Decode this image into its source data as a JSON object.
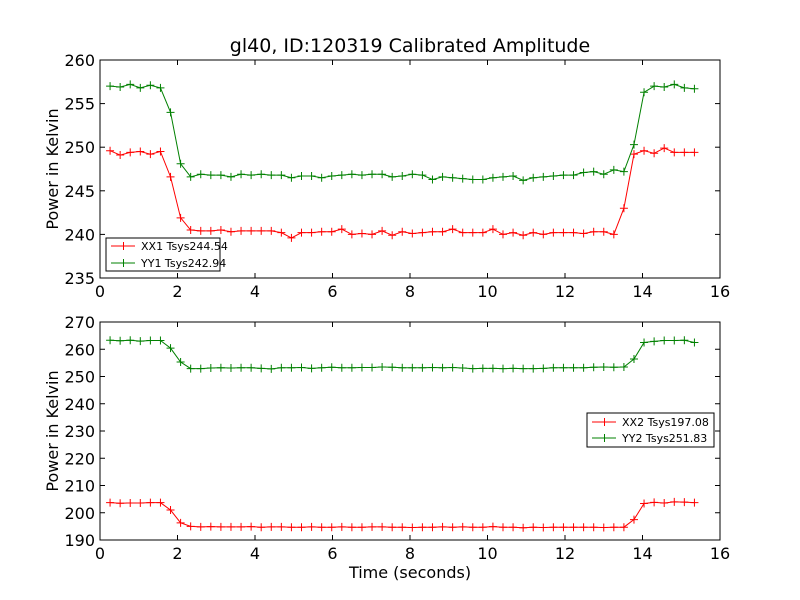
{
  "figure": {
    "title": "gl40, ID:120319 Calibrated Amplitude"
  },
  "chart_data": [
    {
      "type": "line",
      "title": "gl40, ID:120319 Calibrated Amplitude",
      "xlabel": "",
      "ylabel": "Power in Kelvin",
      "xlim": [
        0,
        16
      ],
      "ylim": [
        235,
        260
      ],
      "xticks": [
        0,
        2,
        4,
        6,
        8,
        10,
        12,
        14,
        16
      ],
      "yticks": [
        235,
        240,
        245,
        250,
        255,
        260
      ],
      "grid": false,
      "legend_position": "lower-left",
      "x": [
        0.26,
        0.52,
        0.78,
        1.04,
        1.3,
        1.56,
        1.82,
        2.08,
        2.34,
        2.6,
        2.86,
        3.12,
        3.38,
        3.64,
        3.9,
        4.16,
        4.42,
        4.68,
        4.94,
        5.2,
        5.46,
        5.72,
        5.98,
        6.24,
        6.5,
        6.76,
        7.02,
        7.28,
        7.54,
        7.8,
        8.06,
        8.32,
        8.58,
        8.84,
        9.1,
        9.36,
        9.62,
        9.88,
        10.14,
        10.4,
        10.66,
        10.92,
        11.18,
        11.44,
        11.7,
        11.96,
        12.22,
        12.48,
        12.74,
        13.0,
        13.26,
        13.52,
        13.78,
        14.04,
        14.3,
        14.56,
        14.82,
        15.08,
        15.34
      ],
      "series": [
        {
          "name": "XX1 Tsys244.54",
          "color": "#ff0000",
          "values": [
            249.6,
            249.1,
            249.4,
            249.5,
            249.2,
            249.5,
            246.6,
            241.9,
            240.5,
            240.4,
            240.4,
            240.5,
            240.3,
            240.4,
            240.4,
            240.4,
            240.4,
            240.2,
            239.6,
            240.2,
            240.2,
            240.3,
            240.3,
            240.6,
            240.0,
            240.1,
            240.0,
            240.4,
            239.9,
            240.3,
            240.1,
            240.2,
            240.3,
            240.3,
            240.6,
            240.2,
            240.2,
            240.2,
            240.6,
            240.0,
            240.2,
            239.9,
            240.2,
            240.0,
            240.2,
            240.2,
            240.2,
            240.1,
            240.3,
            240.3,
            240.0,
            243.0,
            249.2,
            249.6,
            249.3,
            249.9,
            249.4,
            249.4,
            249.4
          ]
        },
        {
          "name": "YY1 Tsys242.94",
          "color": "#008000",
          "values": [
            257.0,
            256.9,
            257.2,
            256.8,
            257.1,
            256.8,
            254.0,
            248.1,
            246.6,
            246.9,
            246.8,
            246.8,
            246.6,
            246.9,
            246.8,
            246.9,
            246.8,
            246.8,
            246.5,
            246.7,
            246.7,
            246.5,
            246.7,
            246.8,
            246.9,
            246.8,
            246.9,
            246.9,
            246.6,
            246.7,
            246.9,
            246.8,
            246.3,
            246.6,
            246.5,
            246.4,
            246.3,
            246.3,
            246.5,
            246.6,
            246.7,
            246.2,
            246.5,
            246.6,
            246.7,
            246.8,
            246.8,
            247.1,
            247.2,
            246.9,
            247.4,
            247.2,
            250.3,
            256.3,
            257.0,
            256.9,
            257.2,
            256.8,
            256.7
          ]
        }
      ]
    },
    {
      "type": "line",
      "title": "",
      "xlabel": "Time (seconds)",
      "ylabel": "Power in Kelvin",
      "xlim": [
        0,
        16
      ],
      "ylim": [
        190,
        270
      ],
      "xticks": [
        0,
        2,
        4,
        6,
        8,
        10,
        12,
        14,
        16
      ],
      "yticks": [
        190,
        200,
        210,
        220,
        230,
        240,
        250,
        260,
        270
      ],
      "grid": false,
      "legend_position": "center-right",
      "x": [
        0.26,
        0.52,
        0.78,
        1.04,
        1.3,
        1.56,
        1.82,
        2.08,
        2.34,
        2.6,
        2.86,
        3.12,
        3.38,
        3.64,
        3.9,
        4.16,
        4.42,
        4.68,
        4.94,
        5.2,
        5.46,
        5.72,
        5.98,
        6.24,
        6.5,
        6.76,
        7.02,
        7.28,
        7.54,
        7.8,
        8.06,
        8.32,
        8.58,
        8.84,
        9.1,
        9.36,
        9.62,
        9.88,
        10.14,
        10.4,
        10.66,
        10.92,
        11.18,
        11.44,
        11.7,
        11.96,
        12.22,
        12.48,
        12.74,
        13.0,
        13.26,
        13.52,
        13.78,
        14.04,
        14.3,
        14.56,
        14.82,
        15.08,
        15.34
      ],
      "series": [
        {
          "name": "XX2 Tsys197.08",
          "color": "#ff0000",
          "values": [
            203.7,
            203.5,
            203.6,
            203.6,
            203.7,
            203.7,
            201.0,
            196.3,
            195.0,
            194.8,
            194.9,
            194.8,
            194.8,
            194.8,
            194.9,
            194.7,
            194.8,
            194.8,
            194.7,
            194.7,
            194.8,
            194.7,
            194.7,
            194.8,
            194.7,
            194.7,
            194.8,
            194.8,
            194.7,
            194.7,
            194.6,
            194.7,
            194.7,
            194.8,
            194.7,
            194.8,
            194.7,
            194.7,
            194.9,
            194.7,
            194.7,
            194.5,
            194.7,
            194.6,
            194.7,
            194.7,
            194.7,
            194.7,
            194.7,
            194.6,
            194.7,
            194.7,
            197.5,
            203.4,
            203.8,
            203.6,
            204.0,
            203.9,
            203.7
          ]
        },
        {
          "name": "YY2 Tsys251.83",
          "color": "#008000",
          "values": [
            263.3,
            263.1,
            263.3,
            263.0,
            263.2,
            263.2,
            260.4,
            255.3,
            252.9,
            252.9,
            253.1,
            253.2,
            253.1,
            253.2,
            253.2,
            253.0,
            252.8,
            253.2,
            253.2,
            253.3,
            253.0,
            253.2,
            253.4,
            253.2,
            253.2,
            253.3,
            253.3,
            253.5,
            253.4,
            253.2,
            253.2,
            253.2,
            253.3,
            253.2,
            253.3,
            253.1,
            252.9,
            253.0,
            253.0,
            252.9,
            253.0,
            252.9,
            252.9,
            253.0,
            253.2,
            253.2,
            253.2,
            253.2,
            253.4,
            253.5,
            253.4,
            253.5,
            256.4,
            262.5,
            262.9,
            263.2,
            263.2,
            263.3,
            262.5
          ]
        }
      ]
    }
  ]
}
